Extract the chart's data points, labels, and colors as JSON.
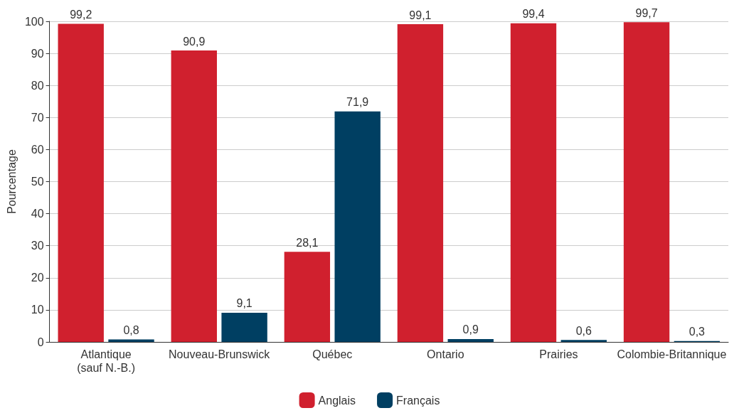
{
  "chart_data": {
    "type": "bar",
    "ylabel": "Pourcentage",
    "categories": [
      "Atlantique (sauf N.-B.)",
      "Nouveau-Brunswick",
      "Québec",
      "Ontario",
      "Prairies",
      "Colombie-Britannique"
    ],
    "series": [
      {
        "name": "Anglais",
        "color": "#d0202e",
        "values": [
          99.2,
          90.9,
          28.1,
          99.1,
          99.4,
          99.7
        ],
        "value_labels": [
          "99,2",
          "90,9",
          "28,1",
          "99,1",
          "99,4",
          "99,7"
        ]
      },
      {
        "name": "Français",
        "color": "#003f62",
        "values": [
          0.8,
          9.1,
          71.9,
          0.9,
          0.6,
          0.3
        ],
        "value_labels": [
          "0,8",
          "9,1",
          "71,9",
          "0,9",
          "0,6",
          "0,3"
        ]
      }
    ],
    "ylim": [
      0,
      100
    ],
    "yticks": [
      0,
      10,
      20,
      30,
      40,
      50,
      60,
      70,
      80,
      90,
      100
    ],
    "grid": "y",
    "legend": "bottom"
  }
}
